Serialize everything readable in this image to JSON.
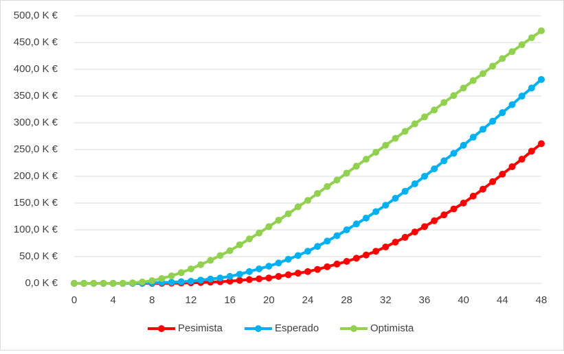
{
  "chart_data": {
    "type": "line",
    "x": [
      0,
      1,
      2,
      3,
      4,
      5,
      6,
      7,
      8,
      9,
      10,
      11,
      12,
      13,
      14,
      15,
      16,
      17,
      18,
      19,
      20,
      21,
      22,
      23,
      24,
      25,
      26,
      27,
      28,
      29,
      30,
      31,
      32,
      33,
      34,
      35,
      36,
      37,
      38,
      39,
      40,
      41,
      42,
      43,
      44,
      45,
      46,
      47,
      48
    ],
    "series": [
      {
        "name": "Pesimista",
        "color": "#ff0000",
        "values": [
          0,
          0,
          0,
          0,
          0,
          0,
          0,
          0,
          0,
          0,
          0.3,
          0.6,
          1,
          1.5,
          2.2,
          3,
          4,
          5.5,
          7,
          8.5,
          10,
          13,
          16,
          19,
          22,
          26,
          31,
          36,
          41,
          47,
          53,
          60,
          68,
          77,
          86,
          96,
          106,
          117,
          128,
          139,
          150,
          163,
          176,
          190,
          204,
          218,
          232,
          247,
          261
        ]
      },
      {
        "name": "Esperado",
        "color": "#00b0f0",
        "values": [
          0,
          0,
          0,
          0,
          0,
          0,
          0.2,
          0.5,
          1,
          1.5,
          2,
          3,
          4,
          6,
          8,
          10,
          13,
          17,
          22,
          27,
          32,
          38,
          45,
          52,
          60,
          69,
          79,
          89,
          100,
          111,
          122,
          134,
          146,
          159,
          172,
          186,
          200,
          214,
          229,
          243,
          258,
          273,
          288,
          303,
          319,
          334,
          350,
          365,
          381
        ]
      },
      {
        "name": "Optimista",
        "color": "#92d050",
        "values": [
          0,
          0,
          0,
          0,
          0,
          0.3,
          1,
          2.5,
          5,
          9,
          14,
          20,
          27,
          35,
          43,
          52,
          61,
          72,
          83,
          94,
          106,
          118,
          130,
          143,
          155,
          168,
          181,
          193,
          206,
          219,
          232,
          245,
          258,
          271,
          284,
          298,
          311,
          324,
          338,
          351,
          365,
          379,
          392,
          406,
          420,
          433,
          446,
          459,
          472
        ]
      }
    ],
    "xlim": [
      0,
      48
    ],
    "xticks": [
      0,
      4,
      8,
      12,
      16,
      20,
      24,
      28,
      32,
      36,
      40,
      44,
      48
    ],
    "ylim": [
      0,
      500
    ],
    "yticks": [
      {
        "value": 0,
        "label": "0,0 K €"
      },
      {
        "value": 50,
        "label": "50,0 K €"
      },
      {
        "value": 100,
        "label": "100,0 K €"
      },
      {
        "value": 150,
        "label": "150,0 K €"
      },
      {
        "value": 200,
        "label": "200,0 K €"
      },
      {
        "value": 250,
        "label": "250,0 K €"
      },
      {
        "value": 300,
        "label": "300,0 K €"
      },
      {
        "value": 350,
        "label": "350,0 K €"
      },
      {
        "value": 400,
        "label": "400,0 K €"
      },
      {
        "value": 450,
        "label": "450,0 K €"
      },
      {
        "value": 500,
        "label": "500,0 K €"
      }
    ],
    "grid": true,
    "legend": "bottom"
  }
}
